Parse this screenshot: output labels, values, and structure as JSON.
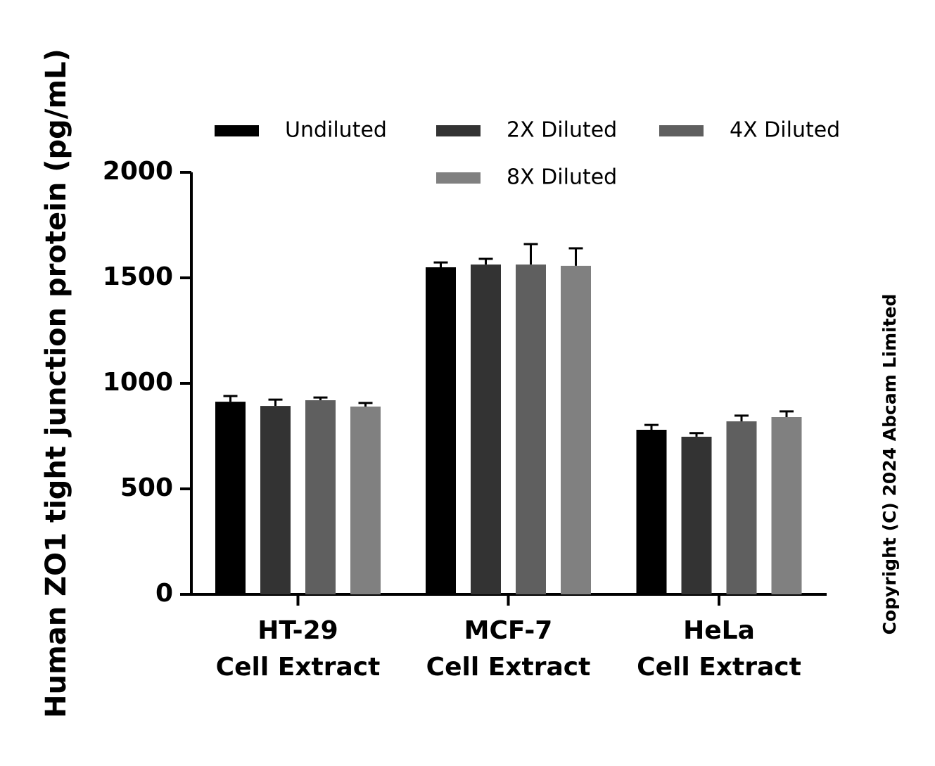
{
  "chart_data": {
    "type": "bar",
    "ylabel": "Human ZO1 tight junction protein (pg/mL)",
    "copyright": "Copyright (C) 2024 Abcam Limited",
    "categories": [
      [
        "HT-29",
        "Cell Extract"
      ],
      [
        "MCF-7",
        "Cell Extract"
      ],
      [
        "HeLa",
        "Cell Extract"
      ]
    ],
    "series": [
      {
        "name": "Undiluted",
        "color": "#000000",
        "values": [
          913,
          1550,
          780
        ],
        "errors": [
          27,
          23,
          23
        ]
      },
      {
        "name": "2X Diluted",
        "color": "#333333",
        "values": [
          893,
          1563,
          747
        ],
        "errors": [
          30,
          27,
          17
        ]
      },
      {
        "name": "4X Diluted",
        "color": "#5f5f5f",
        "values": [
          920,
          1563,
          820
        ],
        "errors": [
          13,
          97,
          27
        ]
      },
      {
        "name": "8X Diluted",
        "color": "#808080",
        "values": [
          890,
          1557,
          840
        ],
        "errors": [
          17,
          83,
          27
        ]
      }
    ],
    "ylim": [
      0,
      2000
    ],
    "yticks": [
      0,
      500,
      1000,
      1500,
      2000
    ],
    "grid": false
  }
}
